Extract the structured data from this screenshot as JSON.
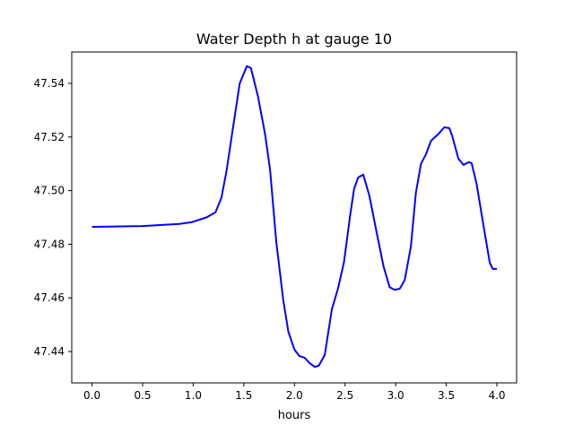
{
  "chart_data": {
    "type": "line",
    "title": "Water Depth h at gauge 10",
    "xlabel": "hours",
    "ylabel": "",
    "xlim": [
      -0.2,
      4.195
    ],
    "ylim": [
      47.4283,
      47.5517
    ],
    "grid": false,
    "xticks": [
      0.0,
      0.5,
      1.0,
      1.5,
      2.0,
      2.5,
      3.0,
      3.5,
      4.0
    ],
    "xtick_labels": [
      "0.0",
      "0.5",
      "1.0",
      "1.5",
      "2.0",
      "2.5",
      "3.0",
      "3.5",
      "4.0"
    ],
    "yticks": [
      47.44,
      47.46,
      47.48,
      47.5,
      47.52,
      47.54
    ],
    "ytick_labels": [
      "47.44",
      "47.46",
      "47.48",
      "47.50",
      "47.52",
      "47.54"
    ],
    "series": [
      {
        "name": "h",
        "color": "#0000ff",
        "x": [
          0.0,
          0.5,
          0.86,
          0.98,
          1.13,
          1.22,
          1.28,
          1.33,
          1.39,
          1.46,
          1.53,
          1.57,
          1.64,
          1.71,
          1.76,
          1.82,
          1.89,
          1.94,
          2.0,
          2.05,
          2.1,
          2.15,
          2.2,
          2.24,
          2.3,
          2.37,
          2.43,
          2.49,
          2.55,
          2.59,
          2.63,
          2.68,
          2.74,
          2.81,
          2.88,
          2.94,
          2.99,
          3.04,
          3.09,
          3.15,
          3.2,
          3.25,
          3.3,
          3.35,
          3.42,
          3.48,
          3.53,
          3.56,
          3.62,
          3.67,
          3.72,
          3.75,
          3.8,
          3.88,
          3.93,
          3.96,
          4.0
        ],
        "y": [
          47.4865,
          47.4868,
          47.4876,
          47.4882,
          47.49,
          47.4919,
          47.4975,
          47.5076,
          47.5226,
          47.54,
          47.5464,
          47.5457,
          47.535,
          47.521,
          47.5076,
          47.481,
          47.459,
          47.4474,
          47.4407,
          47.4383,
          47.4377,
          47.4357,
          47.4343,
          47.4347,
          47.4387,
          47.4557,
          47.4634,
          47.4734,
          47.4908,
          47.5008,
          47.5049,
          47.506,
          47.4982,
          47.4848,
          47.4718,
          47.464,
          47.463,
          47.4634,
          47.4667,
          47.4791,
          47.4992,
          47.51,
          47.5136,
          47.5186,
          47.521,
          47.5236,
          47.5233,
          47.5203,
          47.5119,
          47.5096,
          47.5106,
          47.5103,
          47.5025,
          47.4841,
          47.4731,
          47.4708,
          47.4708
        ]
      }
    ]
  }
}
